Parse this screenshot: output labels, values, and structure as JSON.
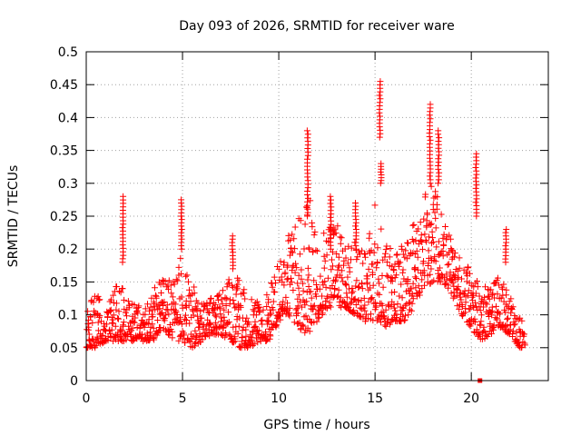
{
  "chart_data": {
    "type": "scatter",
    "title": "Day 093 of 2026, SRMTID for receiver ware",
    "xlabel": "GPS time / hours",
    "ylabel": "SRMTID / TECUs",
    "xlim": [
      0,
      24
    ],
    "ylim": [
      0,
      0.5
    ],
    "x_ticks": [
      0,
      5,
      10,
      15,
      20
    ],
    "x_tick_labels": [
      "0",
      "5",
      "10",
      "15",
      "20"
    ],
    "y_ticks": [
      0,
      0.05,
      0.1,
      0.15,
      0.2,
      0.25,
      0.3,
      0.35,
      0.4,
      0.45,
      0.5
    ],
    "y_tick_labels": [
      "0",
      "0.05",
      "0.1",
      "0.15",
      "0.2",
      "0.25",
      "0.3",
      "0.35",
      "0.4",
      "0.45",
      "0.5"
    ],
    "grid": true,
    "marker": "+",
    "series_color": "#ff0000",
    "envelope": {
      "hours": [
        0,
        0.5,
        1,
        1.5,
        2,
        2.5,
        3,
        3.5,
        4,
        4.5,
        5,
        5.5,
        6,
        6.5,
        7,
        7.5,
        8,
        8.5,
        9,
        9.5,
        10,
        10.5,
        11,
        11.5,
        12,
        12.5,
        13,
        13.5,
        14,
        14.5,
        15,
        15.5,
        16,
        16.5,
        17,
        17.5,
        18,
        18.5,
        19,
        19.5,
        20,
        20.5,
        21,
        21.5,
        22,
        22.5,
        22.8
      ],
      "low": [
        0.05,
        0.05,
        0.06,
        0.06,
        0.06,
        0.06,
        0.06,
        0.06,
        0.08,
        0.06,
        0.06,
        0.05,
        0.06,
        0.07,
        0.07,
        0.06,
        0.05,
        0.05,
        0.06,
        0.06,
        0.09,
        0.1,
        0.08,
        0.07,
        0.09,
        0.11,
        0.11,
        0.11,
        0.1,
        0.09,
        0.09,
        0.08,
        0.09,
        0.09,
        0.11,
        0.14,
        0.15,
        0.15,
        0.13,
        0.1,
        0.08,
        0.06,
        0.07,
        0.08,
        0.07,
        0.05,
        0.05
      ],
      "high": [
        0.1,
        0.14,
        0.1,
        0.15,
        0.14,
        0.12,
        0.11,
        0.14,
        0.16,
        0.15,
        0.2,
        0.15,
        0.12,
        0.13,
        0.14,
        0.16,
        0.16,
        0.13,
        0.12,
        0.14,
        0.18,
        0.23,
        0.25,
        0.3,
        0.22,
        0.24,
        0.24,
        0.22,
        0.21,
        0.2,
        0.27,
        0.21,
        0.2,
        0.22,
        0.24,
        0.28,
        0.3,
        0.26,
        0.22,
        0.18,
        0.17,
        0.14,
        0.15,
        0.16,
        0.13,
        0.1,
        0.08
      ]
    },
    "spikes": [
      {
        "x": 1.9,
        "y_low": 0.18,
        "y_high": 0.28
      },
      {
        "x": 4.95,
        "y_low": 0.2,
        "y_high": 0.275
      },
      {
        "x": 7.6,
        "y_low": 0.17,
        "y_high": 0.22
      },
      {
        "x": 11.5,
        "y_low": 0.25,
        "y_high": 0.38
      },
      {
        "x": 12.7,
        "y_low": 0.2,
        "y_high": 0.28
      },
      {
        "x": 14.0,
        "y_low": 0.2,
        "y_high": 0.27
      },
      {
        "x": 15.25,
        "y_low": 0.37,
        "y_high": 0.455
      },
      {
        "x": 15.3,
        "y_low": 0.3,
        "y_high": 0.33
      },
      {
        "x": 17.85,
        "y_low": 0.3,
        "y_high": 0.42
      },
      {
        "x": 18.3,
        "y_low": 0.3,
        "y_high": 0.38
      },
      {
        "x": 20.25,
        "y_low": 0.25,
        "y_high": 0.345
      },
      {
        "x": 21.8,
        "y_low": 0.18,
        "y_high": 0.23
      }
    ],
    "outliers": [
      {
        "x": 20.45,
        "y": 0.0
      }
    ]
  }
}
